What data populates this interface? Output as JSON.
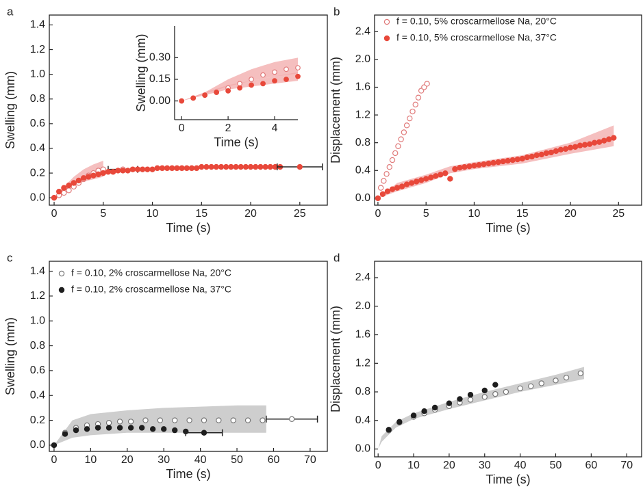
{
  "chart_data": [
    {
      "type": "scatter",
      "panel": "a",
      "xlabel": "Time (s)",
      "ylabel": "Swelling (mm)",
      "xlim": [
        -0.49,
        27.8
      ],
      "ylim": [
        -0.06,
        1.48
      ],
      "xticks": [
        0,
        5,
        10,
        15,
        20,
        25
      ],
      "yticks": [
        {
          "value": 0,
          "label": "0.0"
        },
        0.2,
        0.4,
        0.6,
        0.8,
        {
          "value": 1,
          "label": "1.0"
        },
        1.2,
        1.4
      ],
      "series": [
        {
          "color": "#e07a7a",
          "marker": "open",
          "x": [
            0,
            0.5,
            1,
            1.5,
            2,
            2.5,
            3,
            3.5,
            4,
            4.5,
            5
          ],
          "values": [
            0,
            0.02,
            0.04,
            0.06,
            0.09,
            0.12,
            0.15,
            0.18,
            0.2,
            0.22,
            0.23
          ],
          "band": {
            "color": "#f2a9a9",
            "x": [
              0,
              1,
              2,
              3,
              4,
              5
            ],
            "lower": [
              0,
              0.06,
              0.1,
              0.13,
              0.15,
              0.17
            ],
            "upper": [
              0,
              0.09,
              0.17,
              0.23,
              0.27,
              0.3
            ]
          }
        },
        {
          "color": "#e07a7a",
          "marker": "open",
          "x": [
            7
          ],
          "values": [
            0.23
          ],
          "xerr": [
            1.5
          ]
        },
        {
          "color": "#e8483a",
          "marker": "filled",
          "x": [
            0,
            0.5,
            1,
            1.5,
            2,
            2.5,
            3,
            3.5,
            4,
            4.5,
            5,
            5.5,
            6,
            6.5,
            7,
            7.5,
            8,
            8.5,
            9,
            9.5,
            10,
            10.5,
            11,
            11.5,
            12,
            12.5,
            13,
            13.5,
            14,
            14.5,
            15,
            15.5,
            16,
            16.5,
            17,
            17.5,
            18,
            18.5,
            19,
            19.5,
            20,
            20.5,
            21,
            21.5,
            22,
            22.5,
            23
          ],
          "values": [
            0,
            0.05,
            0.08,
            0.1,
            0.12,
            0.14,
            0.16,
            0.17,
            0.18,
            0.19,
            0.2,
            0.21,
            0.21,
            0.22,
            0.22,
            0.22,
            0.23,
            0.23,
            0.23,
            0.23,
            0.23,
            0.24,
            0.24,
            0.24,
            0.24,
            0.24,
            0.24,
            0.24,
            0.24,
            0.24,
            0.25,
            0.25,
            0.25,
            0.25,
            0.25,
            0.25,
            0.25,
            0.25,
            0.25,
            0.25,
            0.25,
            0.25,
            0.25,
            0.25,
            0.25,
            0.25,
            0.25
          ]
        },
        {
          "color": "#e8483a",
          "marker": "filled",
          "x": [
            25
          ],
          "values": [
            0.25
          ],
          "xerr": [
            2.3
          ]
        }
      ]
    },
    {
      "type": "scatter",
      "xlabel": "Time (s)",
      "ylabel": "Swelling (mm)",
      "xlim": [
        -0.3,
        5
      ],
      "ylim": [
        -0.13,
        0.52
      ],
      "xticks": [
        0,
        2,
        4
      ],
      "yticks": [
        {
          "value": 0,
          "label": "0.00"
        },
        0.15,
        {
          "value": 0.3,
          "label": "0.30"
        }
      ],
      "series": [
        {
          "color": "#e07a7a",
          "marker": "open",
          "x": [
            0,
            0.5,
            1,
            1.5,
            2,
            2.5,
            3,
            3.5,
            4,
            4.5,
            5
          ],
          "values": [
            0,
            0.02,
            0.04,
            0.06,
            0.09,
            0.12,
            0.15,
            0.18,
            0.2,
            0.22,
            0.23
          ],
          "band": {
            "color": "#f2a9a9",
            "x": [
              0,
              1,
              2,
              3,
              4,
              5
            ],
            "lower": [
              0,
              0.05,
              0.1,
              0.14,
              0.17,
              0.19
            ],
            "upper": [
              0,
              0.06,
              0.15,
              0.22,
              0.27,
              0.3
            ]
          }
        },
        {
          "color": "#e8483a",
          "marker": "filled",
          "x": [
            0,
            0.5,
            1,
            1.5,
            2,
            2.5,
            3,
            3.5,
            4,
            4.5,
            5
          ],
          "values": [
            0,
            0.02,
            0.04,
            0.06,
            0.07,
            0.09,
            0.11,
            0.12,
            0.14,
            0.15,
            0.17
          ],
          "band": {
            "color": "#f2a9a9",
            "x": [
              0,
              1,
              2,
              3,
              4,
              5
            ],
            "lower": [
              0,
              0.04,
              0.08,
              0.1,
              0.12,
              0.14
            ],
            "upper": [
              0,
              0.06,
              0.11,
              0.14,
              0.17,
              0.2
            ]
          }
        }
      ]
    },
    {
      "type": "scatter",
      "panel": "b",
      "xlabel": "Time (s)",
      "ylabel": "Displacement (mm)",
      "legend": "upper left",
      "xlim": [
        -0.35,
        27.4
      ],
      "ylim": [
        -0.1,
        2.64
      ],
      "xticks": [
        0,
        5,
        10,
        15,
        20,
        25
      ],
      "yticks": [
        {
          "value": 0,
          "label": "0.0"
        },
        0.4,
        0.8,
        1.2,
        1.6,
        {
          "value": 2,
          "label": "2.0"
        },
        2.4
      ],
      "series": [
        {
          "name": "f = 0.10, 5% croscarmellose Na, 20°C",
          "color": "#e07a7a",
          "marker": "open",
          "x": [
            0.3,
            0.6,
            0.9,
            1.2,
            1.5,
            1.8,
            2.1,
            2.4,
            2.7,
            3,
            3.3,
            3.6,
            3.9,
            4.2,
            4.5,
            4.8,
            5.1
          ],
          "values": [
            0.15,
            0.25,
            0.35,
            0.45,
            0.55,
            0.65,
            0.75,
            0.85,
            0.95,
            1.05,
            1.15,
            1.25,
            1.35,
            1.45,
            1.55,
            1.6,
            1.65
          ]
        },
        {
          "name": "f = 0.10, 5% croscarmellose Na, 37°C",
          "color": "#e8483a",
          "marker": "filled",
          "x": [
            0,
            0.5,
            1,
            1.5,
            2,
            2.5,
            3,
            3.5,
            4,
            4.5,
            5,
            5.5,
            6,
            6.5,
            7,
            7.5,
            8,
            8.5,
            9,
            9.5,
            10,
            10.5,
            11,
            11.5,
            12,
            12.5,
            13,
            13.5,
            14,
            14.5,
            15,
            15.5,
            16,
            16.5,
            17,
            17.5,
            18,
            18.5,
            19,
            19.5,
            20,
            20.5,
            21,
            21.5,
            22,
            22.5,
            23,
            23.5,
            24,
            24.5
          ],
          "values": [
            0,
            0.06,
            0.1,
            0.13,
            0.15,
            0.17,
            0.2,
            0.22,
            0.24,
            0.26,
            0.28,
            0.3,
            0.32,
            0.34,
            0.36,
            0.28,
            0.42,
            0.44,
            0.45,
            0.46,
            0.47,
            0.48,
            0.49,
            0.5,
            0.51,
            0.52,
            0.53,
            0.54,
            0.55,
            0.56,
            0.57,
            0.59,
            0.6,
            0.62,
            0.63,
            0.65,
            0.66,
            0.68,
            0.7,
            0.71,
            0.73,
            0.74,
            0.76,
            0.77,
            0.78,
            0.8,
            0.81,
            0.83,
            0.85,
            0.87
          ],
          "band": {
            "color": "#f2a9a9",
            "x": [
              0,
              2,
              5,
              7.5,
              10,
              15,
              20,
              24.5
            ],
            "lower": [
              0,
              0.1,
              0.22,
              0.36,
              0.42,
              0.5,
              0.64,
              0.75
            ],
            "upper": [
              0,
              0.22,
              0.34,
              0.46,
              0.52,
              0.62,
              0.8,
              1.05
            ]
          }
        }
      ]
    },
    {
      "type": "scatter",
      "panel": "c",
      "xlabel": "Time (s)",
      "ylabel": "Swelling (mm)",
      "legend": "upper left",
      "xlim": [
        -1.3,
        74.7
      ],
      "ylim": [
        -0.05,
        1.48
      ],
      "xticks": [
        0,
        10,
        20,
        30,
        40,
        50,
        60,
        70
      ],
      "yticks": [
        {
          "value": 0,
          "label": "0.0"
        },
        0.2,
        0.4,
        0.6,
        0.8,
        {
          "value": 1,
          "label": "1.0"
        },
        1.2,
        1.4
      ],
      "series": [
        {
          "name": "f = 0.10, 2% croscarmellose Na, 20°C",
          "color": "#777777",
          "marker": "open",
          "x": [
            0,
            3,
            6,
            9,
            12,
            15,
            18,
            21,
            25,
            29,
            33,
            37,
            41,
            45,
            49,
            53,
            57
          ],
          "values": [
            0,
            0.1,
            0.14,
            0.16,
            0.17,
            0.18,
            0.19,
            0.19,
            0.2,
            0.2,
            0.2,
            0.2,
            0.2,
            0.2,
            0.2,
            0.2,
            0.2
          ],
          "band": {
            "color": "#bdbdbd",
            "x": [
              0,
              5,
              10,
              20,
              30,
              40,
              50,
              58
            ],
            "lower": [
              0,
              0.06,
              0.08,
              0.1,
              0.1,
              0.1,
              0.1,
              0.1
            ],
            "upper": [
              0,
              0.2,
              0.25,
              0.28,
              0.3,
              0.31,
              0.32,
              0.32
            ]
          }
        },
        {
          "name": "f = 0.10, 2% croscarmellose Na, 37°C",
          "color": "#1e1e1e",
          "marker": "filled",
          "x": [
            0,
            3,
            6,
            9,
            12,
            15,
            18,
            21,
            24,
            27,
            30,
            33,
            36
          ],
          "values": [
            0,
            0.09,
            0.12,
            0.13,
            0.14,
            0.14,
            0.14,
            0.14,
            0.14,
            0.13,
            0.13,
            0.12,
            0.11
          ]
        },
        {
          "color": "#777777",
          "marker": "open",
          "x": [
            65
          ],
          "values": [
            0.21
          ],
          "xerr": [
            7
          ]
        },
        {
          "color": "#1e1e1e",
          "marker": "filled",
          "x": [
            41
          ],
          "values": [
            0.1
          ],
          "xerr": [
            5
          ]
        }
      ]
    },
    {
      "type": "scatter",
      "panel": "d",
      "xlabel": "Time (s)",
      "ylabel": "Displacement (mm)",
      "xlim": [
        -1,
        74.2
      ],
      "ylim": [
        -0.11,
        2.63
      ],
      "xticks": [
        0,
        10,
        20,
        30,
        40,
        50,
        60,
        70
      ],
      "yticks": [
        {
          "value": 0,
          "label": "0.0"
        },
        0.4,
        0.8,
        1.2,
        1.6,
        {
          "value": 2,
          "label": "2.0"
        },
        2.4
      ],
      "series": [
        {
          "color": "#777777",
          "marker": "open",
          "x": [
            3,
            6,
            10,
            13,
            16,
            20,
            23,
            26,
            30,
            33,
            36,
            40,
            43,
            46,
            50,
            53,
            57
          ],
          "values": [
            0.26,
            0.37,
            0.45,
            0.5,
            0.55,
            0.6,
            0.65,
            0.69,
            0.73,
            0.77,
            0.8,
            0.85,
            0.88,
            0.92,
            0.96,
            1.0,
            1.06
          ],
          "band": {
            "color": "#bdbdbd",
            "x": [
              0,
              1,
              5,
              10,
              20,
              30,
              40,
              50,
              58
            ],
            "lower": [
              0,
              0.1,
              0.3,
              0.42,
              0.56,
              0.68,
              0.8,
              0.9,
              0.98
            ],
            "upper": [
              0,
              0.18,
              0.38,
              0.5,
              0.66,
              0.8,
              0.92,
              1.04,
              1.15
            ]
          }
        },
        {
          "color": "#1e1e1e",
          "marker": "filled",
          "x": [
            3,
            6,
            10,
            13,
            16,
            20,
            23,
            26,
            30,
            33
          ],
          "values": [
            0.27,
            0.38,
            0.47,
            0.53,
            0.58,
            0.64,
            0.7,
            0.76,
            0.82,
            0.9
          ]
        }
      ]
    }
  ]
}
